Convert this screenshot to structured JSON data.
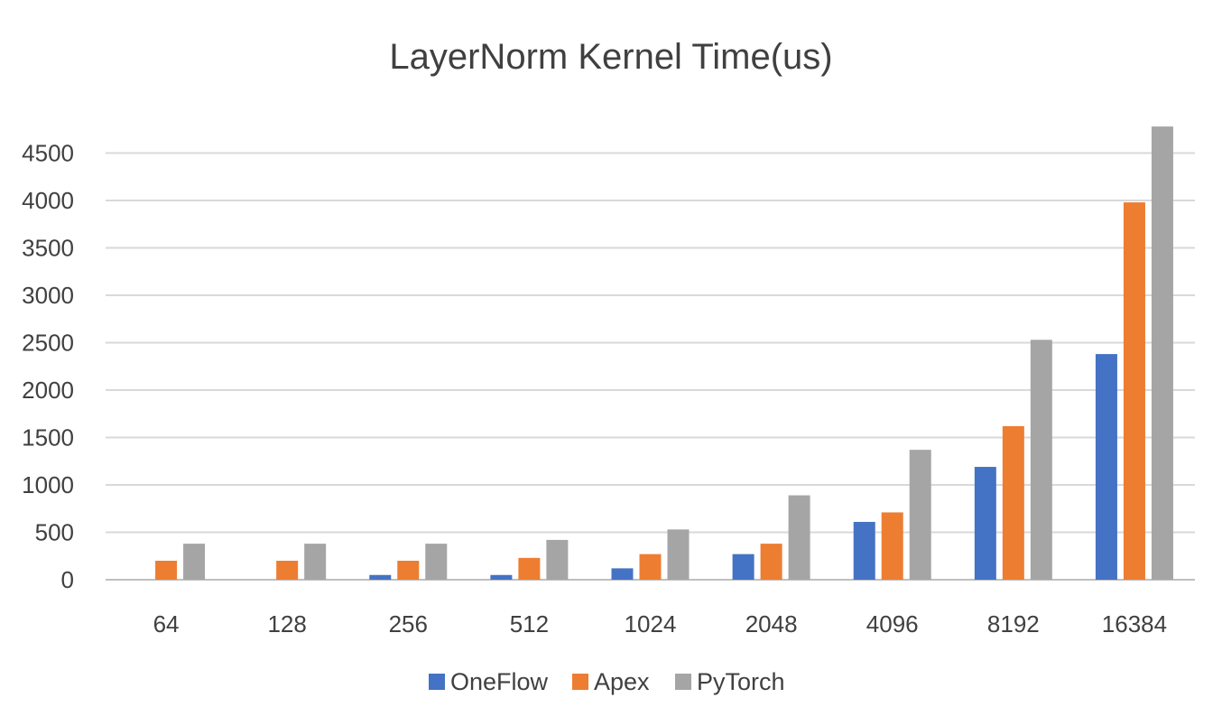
{
  "chart_data": {
    "type": "bar",
    "title": "LayerNorm Kernel Time(us)",
    "xlabel": "",
    "ylabel": "",
    "categories": [
      "64",
      "128",
      "256",
      "512",
      "1024",
      "2048",
      "4096",
      "8192",
      "16384"
    ],
    "series": [
      {
        "name": "OneFlow",
        "color": "#4472C4",
        "values": [
          0,
          0,
          50,
          50,
          120,
          270,
          610,
          1190,
          2380
        ]
      },
      {
        "name": "Apex",
        "color": "#ED7D31",
        "values": [
          200,
          200,
          200,
          230,
          270,
          380,
          710,
          1620,
          3980
        ]
      },
      {
        "name": "PyTorch",
        "color": "#A5A5A5",
        "values": [
          380,
          380,
          380,
          420,
          530,
          890,
          1370,
          2530,
          4780
        ]
      }
    ],
    "yticks": [
      "0",
      "500",
      "1000",
      "1500",
      "2000",
      "2500",
      "3000",
      "3500",
      "4000",
      "4500"
    ],
    "ylim": [
      0,
      4750
    ],
    "grid": true,
    "legend": "bottom"
  }
}
